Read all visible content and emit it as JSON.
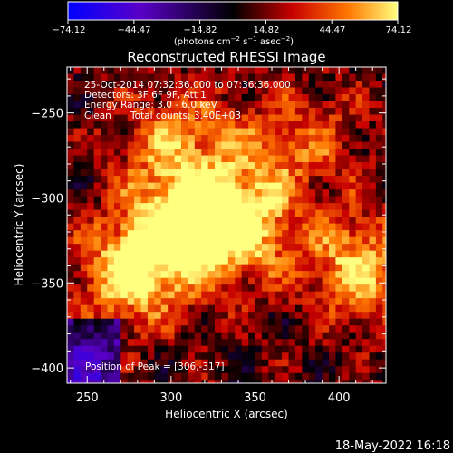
{
  "colorbar": {
    "ticks": [
      "−74.12",
      "−44.47",
      "−14.82",
      "14.82",
      "44.47",
      "74.12"
    ],
    "units_main": "(photons cm",
    "units_exp1": "−2",
    "units_mid": " s",
    "units_exp2": "−1",
    "units_mid2": " asec",
    "units_exp3": "−2",
    "units_end": ")",
    "range": [
      -74.12,
      74.12
    ]
  },
  "title": "Reconstructed RHESSI Image",
  "info": {
    "time": "25-Oct-2014 07:32:36.000 to 07:36:36.000",
    "detectors": "Detectors: 3F 6F 9F, Att 1",
    "energy": "Energy Range: 3.0 - 6.0 keV",
    "clean": "Clean",
    "counts": "Total counts: 3.40E+03",
    "peak": "Position of Peak = [306,-317]"
  },
  "footer": {
    "date": "18-May-2022 16:18"
  },
  "chart_data": {
    "type": "heatmap",
    "title": "Reconstructed RHESSI Image",
    "xlabel": "Heliocentric X (arcsec)",
    "ylabel": "Heliocentric Y (arcsec)",
    "xlim": [
      238,
      428
    ],
    "ylim": [
      -409,
      -223
    ],
    "xticks": [
      "250",
      "300",
      "350",
      "400"
    ],
    "yticks": [
      "−250",
      "−300",
      "−350",
      "−400"
    ],
    "xtick_values": [
      250,
      300,
      350,
      400
    ],
    "ytick_values": [
      -250,
      -300,
      -350,
      -400
    ],
    "value_range": [
      -74.12,
      74.12
    ],
    "peak": [
      306,
      -317
    ],
    "colormap": [
      "#0000ff",
      "#5a00c8",
      "#000000",
      "#c80000",
      "#ff7800",
      "#ffff80"
    ],
    "sources": [
      {
        "x": 306,
        "y": -317,
        "amp": 74
      },
      {
        "x": 276,
        "y": -345,
        "amp": 60
      },
      {
        "x": 343,
        "y": -318,
        "amp": 58
      },
      {
        "x": 412,
        "y": -340,
        "amp": 56
      },
      {
        "x": 302,
        "y": -268,
        "amp": 42
      },
      {
        "x": 352,
        "y": -275,
        "amp": 28
      },
      {
        "x": 390,
        "y": -265,
        "amp": 22
      }
    ]
  }
}
